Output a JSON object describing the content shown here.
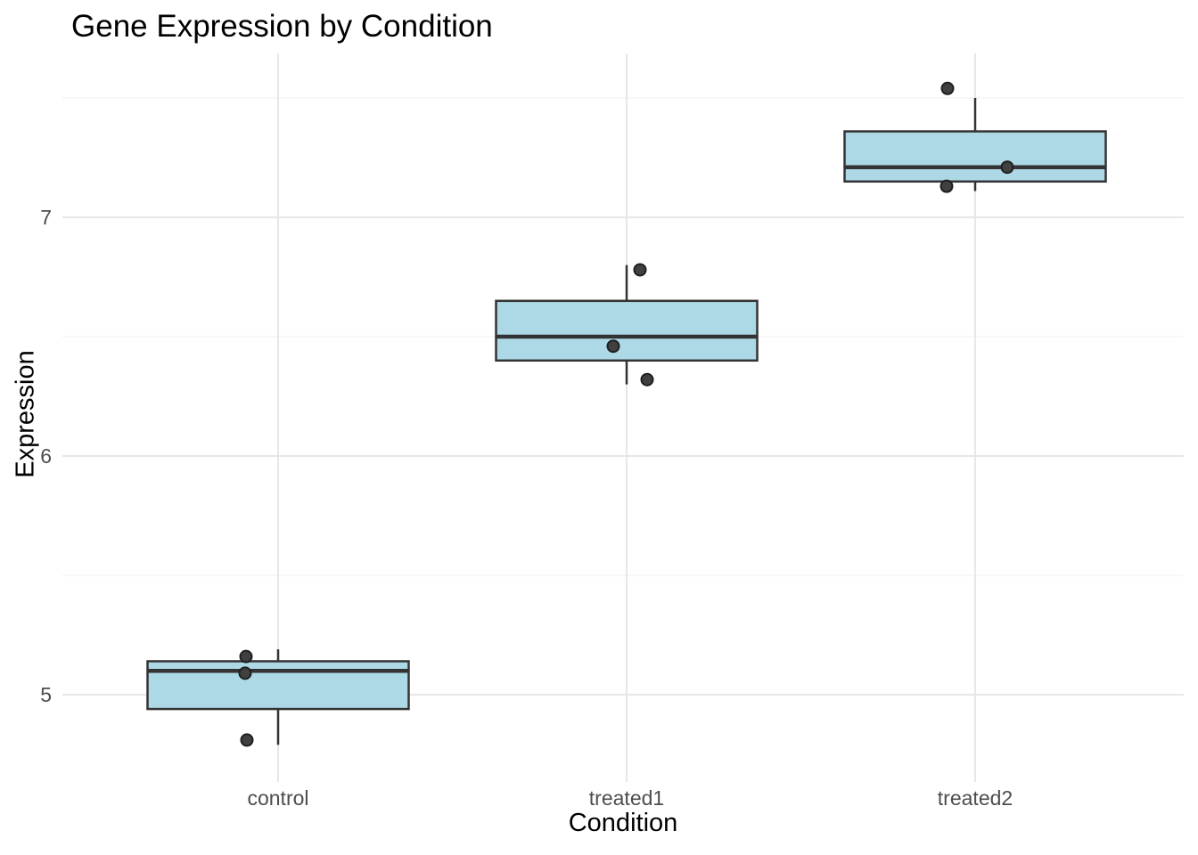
{
  "chart_data": {
    "type": "boxplot",
    "title": "Gene Expression by Condition",
    "xlabel": "Condition",
    "ylabel": "Expression",
    "categories": [
      "control",
      "treated1",
      "treated2"
    ],
    "yticks": [
      5,
      6,
      7
    ],
    "yticks_minor": [
      5.5,
      6.5,
      7.5
    ],
    "ylim": [
      4.66,
      7.69
    ],
    "grid": true,
    "legend": false,
    "series": [
      {
        "name": "control",
        "whisker_low": 4.79,
        "q1": 4.94,
        "median": 5.1,
        "q3": 5.14,
        "whisker_high": 5.19,
        "points": [
          {
            "value": 5.16,
            "dx": -36
          },
          {
            "value": 5.09,
            "dx": -37
          },
          {
            "value": 4.81,
            "dx": -35
          }
        ]
      },
      {
        "name": "treated1",
        "whisker_low": 6.3,
        "q1": 6.4,
        "median": 6.5,
        "q3": 6.65,
        "whisker_high": 6.8,
        "points": [
          {
            "value": 6.78,
            "dx": 15
          },
          {
            "value": 6.46,
            "dx": -15
          },
          {
            "value": 6.32,
            "dx": 23
          }
        ]
      },
      {
        "name": "treated2",
        "whisker_low": 7.11,
        "q1": 7.15,
        "median": 7.21,
        "q3": 7.36,
        "whisker_high": 7.5,
        "points": [
          {
            "value": 7.54,
            "dx": -31
          },
          {
            "value": 7.21,
            "dx": 36
          },
          {
            "value": 7.13,
            "dx": -32
          }
        ]
      }
    ],
    "style": {
      "box_fill": "#ADD8E6",
      "box_border": "#333333",
      "median_color": "#333333",
      "whisker_color": "#333333",
      "point_fill": "#404040",
      "point_stroke": "#1f1f1f",
      "grid_major": "#E7E7E7",
      "grid_minor": "#F2F2F2",
      "tick_label_color": "#4D4D4D",
      "background": "#FFFFFF"
    }
  }
}
